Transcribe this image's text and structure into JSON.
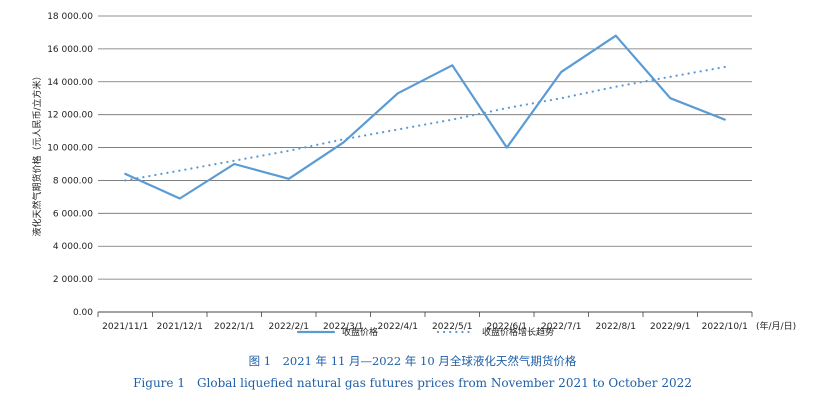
{
  "chart_data": {
    "type": "line",
    "categories": [
      "2021/11/1",
      "2021/12/1",
      "2022/1/1",
      "2022/2/1",
      "2022/3/1",
      "2022/4/1",
      "2022/5/1",
      "2022/6/1",
      "2022/7/1",
      "2022/8/1",
      "2022/9/1",
      "2022/10/1"
    ],
    "x_unit": "(年/月/日)",
    "ylabel": "液化天然气期货价格（元人民币/立方米）",
    "ylim": [
      0,
      18000
    ],
    "yticks": [
      "0.00",
      "2 000.00",
      "4 000.00",
      "6 000.00",
      "8 000.00",
      "10 000.00",
      "12 000.00",
      "14 000.00",
      "16 000.00",
      "18 000.00"
    ],
    "series": [
      {
        "name": "收盘价格",
        "style": "solid",
        "color": "#5b9bd5",
        "values": [
          8400,
          6900,
          9000,
          8100,
          10300,
          13300,
          15000,
          10000,
          14600,
          16800,
          13000,
          11700
        ]
      },
      {
        "name": "收盘价格增长趋势",
        "style": "dotted",
        "color": "#5b9bd5",
        "values": [
          8000,
          8600,
          9200,
          9800,
          10500,
          11100,
          11700,
          12400,
          13000,
          13700,
          14300,
          14900
        ]
      }
    ],
    "grid": true,
    "legend": "top-center"
  },
  "caption": {
    "chinese": "图 1　2021 年 11 月—2022 年 10 月全球液化天然气期货价格",
    "english": "Figure 1　Global liquefied natural gas futures prices from November 2021 to October 2022"
  }
}
